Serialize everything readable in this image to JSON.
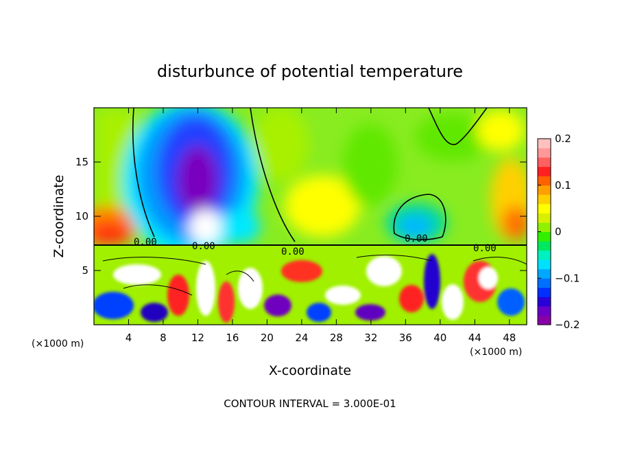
{
  "chart_data": {
    "type": "heatmap",
    "title": "disturbunce of potential temperature",
    "xlabel": "X-coordinate",
    "ylabel": "Z-coordinate",
    "x_unit_left": "(×1000 m)",
    "x_unit_right": "(×1000 m)",
    "xlim": [
      0,
      50
    ],
    "ylim": [
      0,
      20
    ],
    "x_ticks": [
      4,
      8,
      12,
      16,
      20,
      24,
      28,
      32,
      36,
      40,
      44,
      48
    ],
    "x_tick_labels": [
      "4",
      "8",
      "12",
      "16",
      "20",
      "24",
      "28",
      "32",
      "36",
      "40",
      "44",
      "48"
    ],
    "y_ticks": [
      5,
      10,
      15
    ],
    "y_tick_labels": [
      "5",
      "10",
      "15"
    ],
    "colorbar": {
      "range": [
        -0.2,
        0.2
      ],
      "ticks": [
        0.2,
        0.1,
        0,
        -0.1,
        -0.2
      ],
      "tick_labels": [
        "0.2",
        "0.1",
        "0",
        "−0.1",
        "−0.2"
      ],
      "colors": [
        "#8800a8",
        "#6a00c8",
        "#2a00d8",
        "#0030ff",
        "#0070ff",
        "#00a8ff",
        "#00e0ff",
        "#00f0c0",
        "#00e860",
        "#30f000",
        "#90f000",
        "#d8f000",
        "#ffff00",
        "#ffd000",
        "#ffa000",
        "#ff6000",
        "#ff2020",
        "#ff6060",
        "#ff9898",
        "#ffc0c0"
      ]
    },
    "contour_labels": [
      "0.00",
      "0.00",
      "0.00",
      "0.00",
      "0.00"
    ],
    "footer": "CONTOUR INTERVAL = 3.000E-01"
  }
}
